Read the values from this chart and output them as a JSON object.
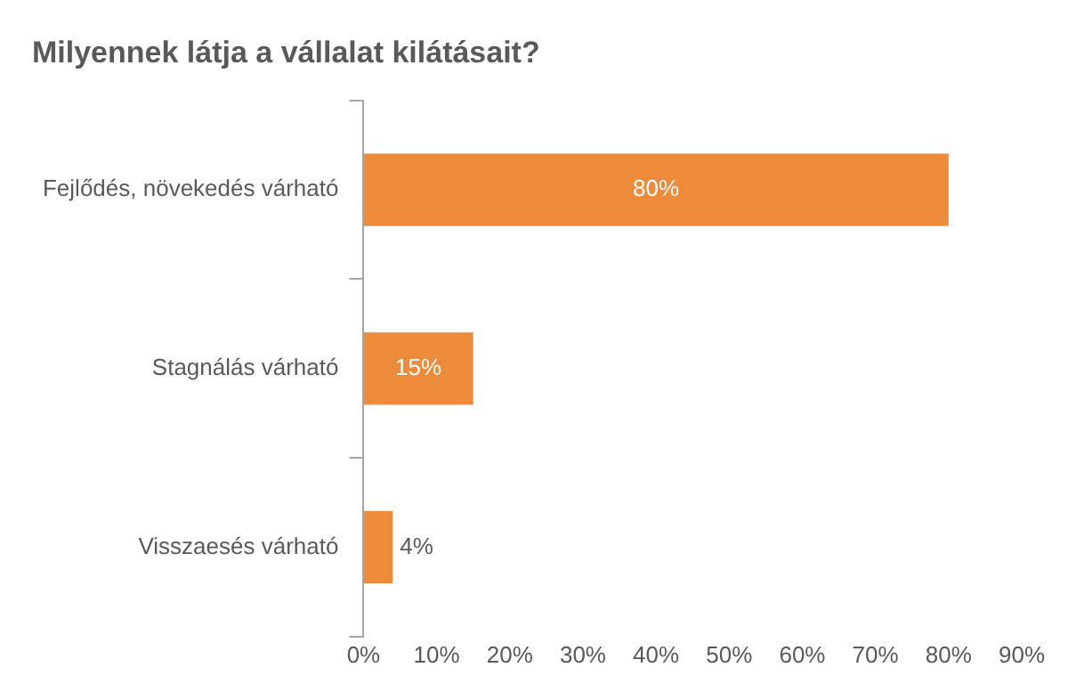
{
  "chart_data": {
    "type": "bar",
    "orientation": "horizontal",
    "title": "Milyennek látja a vállalat kilátásait?",
    "categories": [
      "Fejlődés, növekedés várható",
      "Stagnálás várható",
      "Visszaesés várható"
    ],
    "values": [
      80,
      15,
      4
    ],
    "value_labels": [
      "80%",
      "15%",
      "4%"
    ],
    "color": "#ed8b3a",
    "xlim": [
      0,
      90
    ],
    "xticks": [
      {
        "value": 0,
        "label": "0%"
      },
      {
        "value": 10,
        "label": "10%"
      },
      {
        "value": 20,
        "label": "20%"
      },
      {
        "value": 30,
        "label": "30%"
      },
      {
        "value": 40,
        "label": "40%"
      },
      {
        "value": 50,
        "label": "50%"
      },
      {
        "value": 60,
        "label": "60%"
      },
      {
        "value": 70,
        "label": "70%"
      },
      {
        "value": 80,
        "label": "80%"
      },
      {
        "value": 90,
        "label": "90%"
      }
    ],
    "grid": false,
    "legend": false
  }
}
